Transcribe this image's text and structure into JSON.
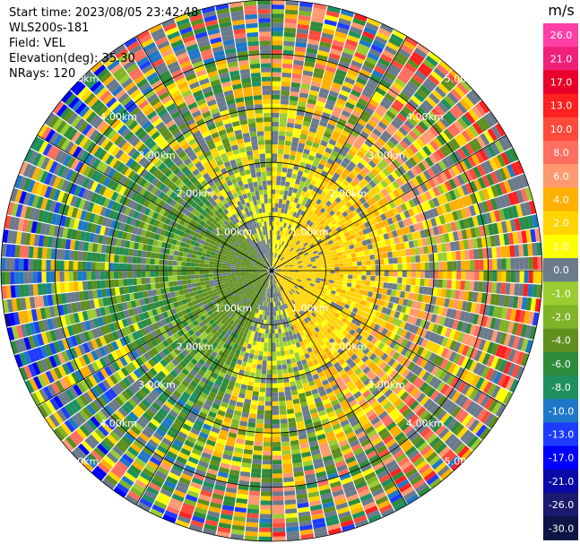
{
  "info": {
    "start_time": "Start time: 2023/08/05 23:42:48",
    "station": "WLS200s-181",
    "field": "Field: VEL",
    "elevation": "Elevation(deg): 35.30",
    "nrays": "NRays: 120"
  },
  "colorbar": {
    "unit": "m/s",
    "ticks": [
      "26.0",
      "21.0",
      "17.0",
      "13.0",
      "10.0",
      "8.0",
      "6.0",
      "4.0",
      "2.0",
      "1.0",
      "0.0",
      "-1.0",
      "-2.0",
      "-4.0",
      "-6.0",
      "-8.0",
      "-10.0",
      "-13.0",
      "-17.0",
      "-21.0",
      "-26.0",
      "-30.0"
    ],
    "colors": [
      "#ff3fa6",
      "#f0207a",
      "#e8002a",
      "#ff2020",
      "#ff4a3a",
      "#ff6e5e",
      "#ff9a70",
      "#ffb000",
      "#ffd400",
      "#ffff00",
      "#6b7b8c",
      "#9acd32",
      "#7fb428",
      "#5f8f1e",
      "#2e8b3a",
      "#1e9060",
      "#1e78c8",
      "#1e3cff",
      "#0000ff",
      "#0a0aa8",
      "#1a1a6e",
      "#0c1446"
    ]
  },
  "chart_data": {
    "type": "heatmap",
    "projection": "polar-ppi",
    "field": "VEL",
    "units": "m/s",
    "nrays": 120,
    "range_rings_km": [
      1,
      2,
      3,
      4,
      5
    ],
    "range_labels": [
      "1.00km",
      "2.00km",
      "3.00km",
      "4.00km",
      "5.00km"
    ],
    "max_range_km": 5.0,
    "sector_mean_velocity": [
      {
        "azimuth_range": [
          0,
          30
        ],
        "mean": 1.5
      },
      {
        "azimuth_range": [
          30,
          160
        ],
        "mean": 3.0
      },
      {
        "azimuth_range": [
          160,
          200
        ],
        "mean": 0.5
      },
      {
        "azimuth_range": [
          200,
          320
        ],
        "mean": -3.0
      },
      {
        "azimuth_range": [
          320,
          360
        ],
        "mean": 0.5
      }
    ],
    "colorscale_levels": [
      -30,
      -26,
      -21,
      -17,
      -13,
      -10,
      -8,
      -6,
      -4,
      -2,
      -1,
      0,
      1,
      2,
      4,
      6,
      8,
      10,
      13,
      17,
      21,
      26
    ]
  }
}
